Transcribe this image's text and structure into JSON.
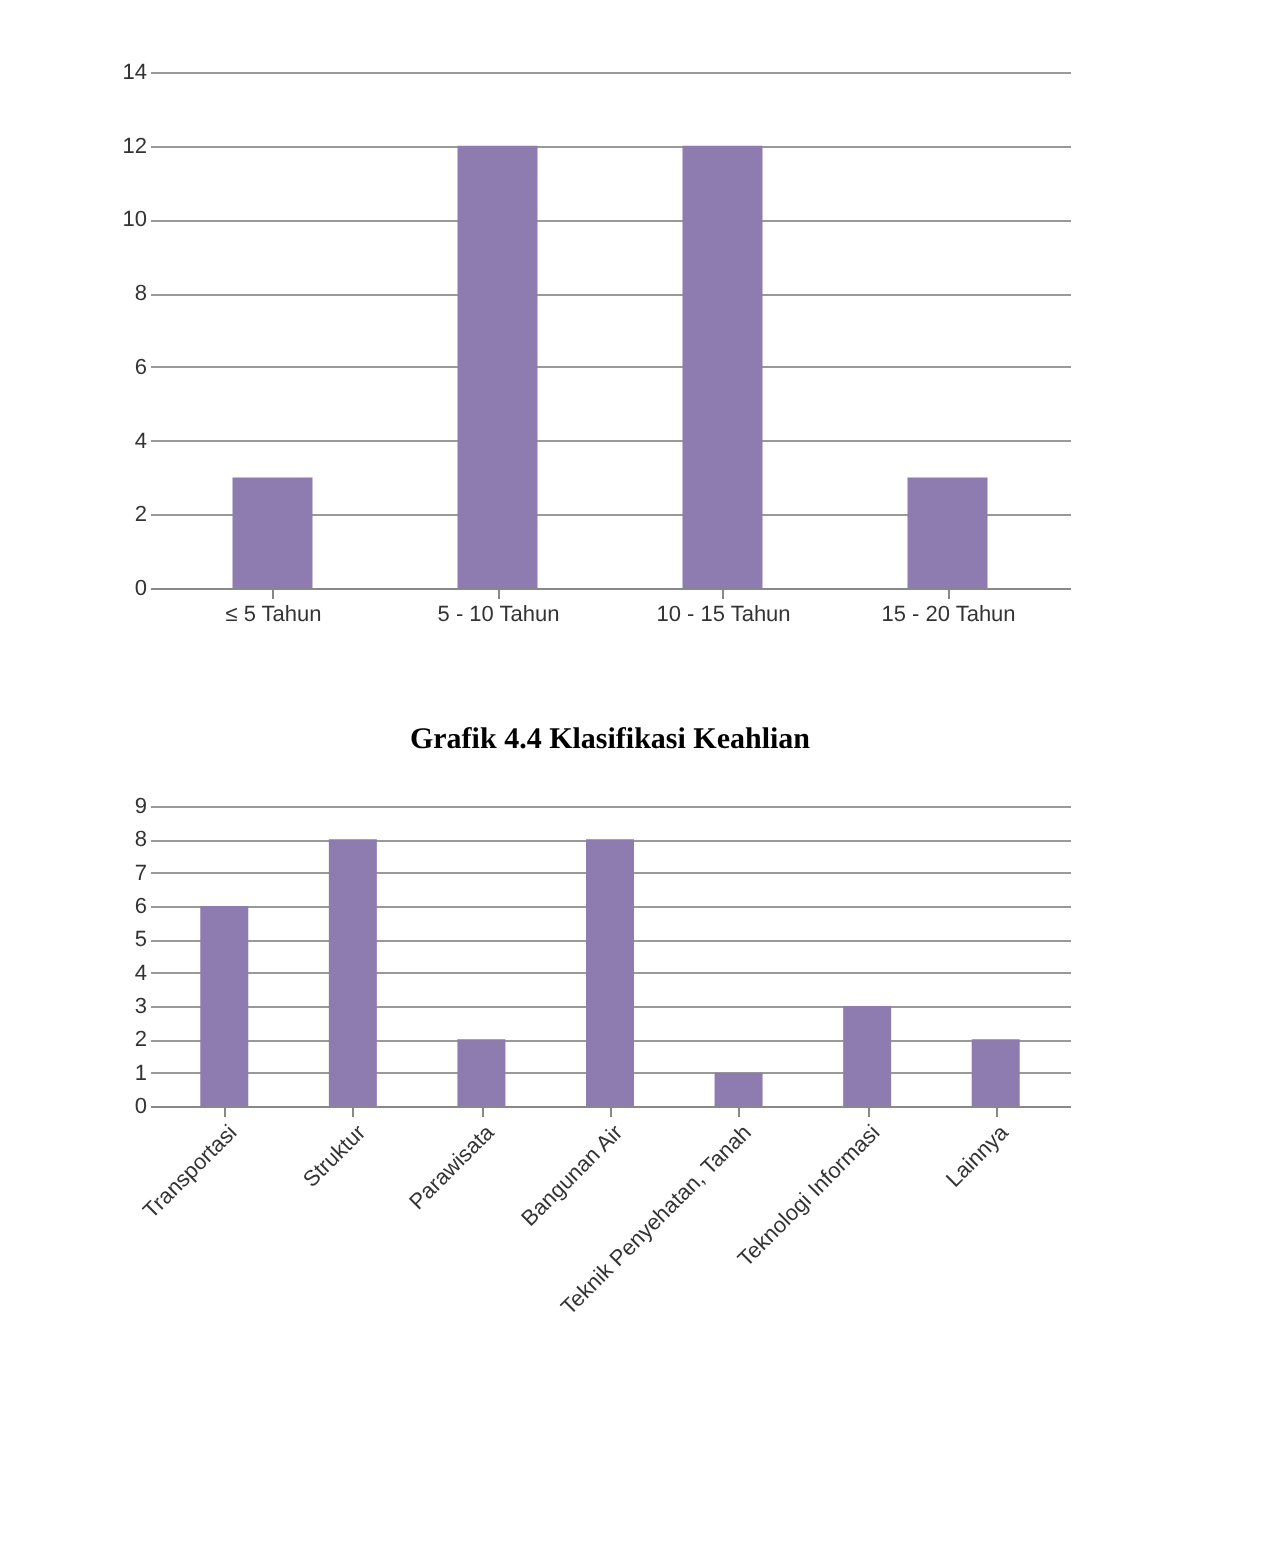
{
  "chart_data": [
    {
      "type": "bar",
      "categories": [
        "≤ 5 Tahun",
        "5 - 10 Tahun",
        "10 - 15 Tahun",
        "15 - 20 Tahun"
      ],
      "values": [
        3,
        12,
        12,
        3
      ],
      "color": "#8e7cb0",
      "ylim": [
        0,
        14
      ],
      "yticks": [
        0,
        2,
        4,
        6,
        8,
        10,
        12,
        14
      ],
      "grid": "y"
    },
    {
      "type": "bar",
      "title": "Grafik 4.4 Klasifikasi Keahlian",
      "categories": [
        "Transportasi",
        "Struktur",
        "Parawisata",
        "Bangunan Air",
        "Teknik Penyehatan, Tanah",
        "Teknologi Informasi",
        "Lainnya"
      ],
      "values": [
        6,
        8,
        2,
        8,
        1,
        3,
        2
      ],
      "color": "#8e7cb0",
      "ylim": [
        0,
        9
      ],
      "yticks": [
        0,
        1,
        2,
        3,
        4,
        5,
        6,
        7,
        8,
        9
      ],
      "grid": "y"
    }
  ]
}
